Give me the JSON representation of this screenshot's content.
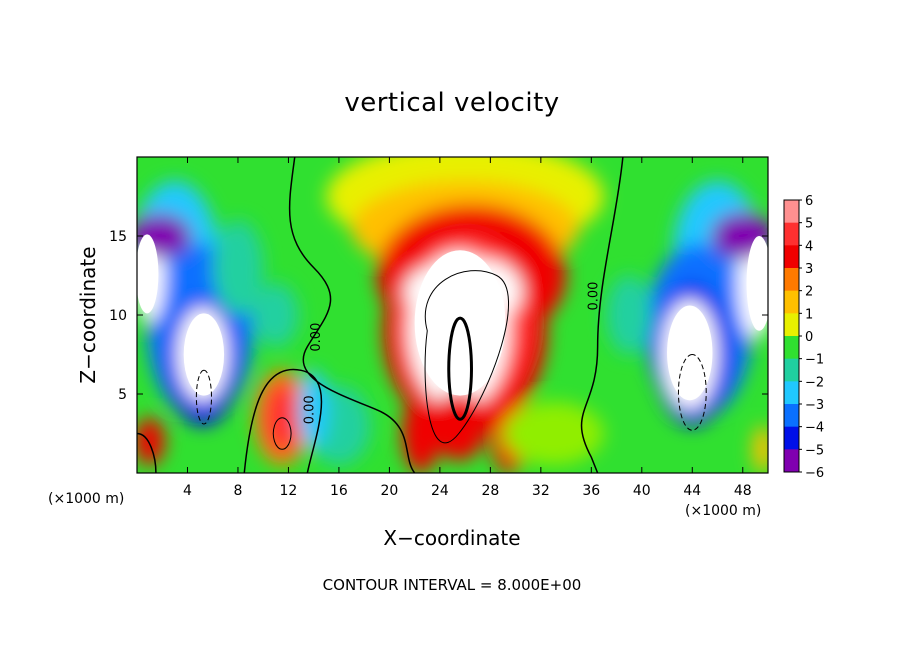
{
  "chart_data": {
    "type": "heatmap",
    "title": "vertical velocity",
    "xlabel": "X−coordinate",
    "ylabel": "Z−coordinate",
    "x_units": "(×1000 m)",
    "z_units": "(×1000 m)",
    "xlim": [
      0,
      50
    ],
    "ylim": [
      0,
      20
    ],
    "x_ticks": [
      4,
      8,
      12,
      16,
      20,
      24,
      28,
      32,
      36,
      40,
      44,
      48
    ],
    "x_tick_labels": [
      "4",
      "8",
      "12",
      "16",
      "20",
      "24",
      "28",
      "32",
      "36",
      "40",
      "44",
      "48"
    ],
    "y_ticks": [
      5,
      10,
      15
    ],
    "y_tick_labels": [
      "5",
      "10",
      "15"
    ],
    "colorbar": {
      "levels": [
        6,
        5,
        4,
        3,
        2,
        1,
        0,
        -1,
        -2,
        -3,
        -4,
        -5,
        -6
      ],
      "labels": [
        "6",
        "5",
        "4",
        "3",
        "2",
        "1",
        "0",
        "−1",
        "−2",
        "−3",
        "−4",
        "−5",
        "−6"
      ],
      "colors": [
        "#ff9090",
        "#ff3030",
        "#f00000",
        "#ff7a00",
        "#ffc000",
        "#e8f000",
        "#90ee00",
        "#30e030",
        "#20d0a0",
        "#20c8ff",
        "#0a70ff",
        "#0010e8",
        "#8000b0"
      ]
    },
    "features": [
      {
        "sign": "positive",
        "center_x": 26,
        "center_z": 9,
        "peak": 8
      },
      {
        "sign": "positive",
        "center_x": 11.5,
        "center_z": 3.5,
        "peak": 5
      },
      {
        "sign": "negative",
        "center_x": 5,
        "center_z": 8,
        "peak": -8
      },
      {
        "sign": "negative",
        "center_x": 44.5,
        "center_z": 8,
        "peak": -8
      },
      {
        "sign": "negative",
        "center_x": 0.5,
        "center_z": 12,
        "peak": -7
      },
      {
        "sign": "negative",
        "center_x": 49.5,
        "center_z": 12,
        "peak": -7
      }
    ],
    "contour_labels": [
      "0.00",
      "0.00",
      "0.00"
    ],
    "contour_interval_text": "CONTOUR INTERVAL = 8.000E+00"
  }
}
